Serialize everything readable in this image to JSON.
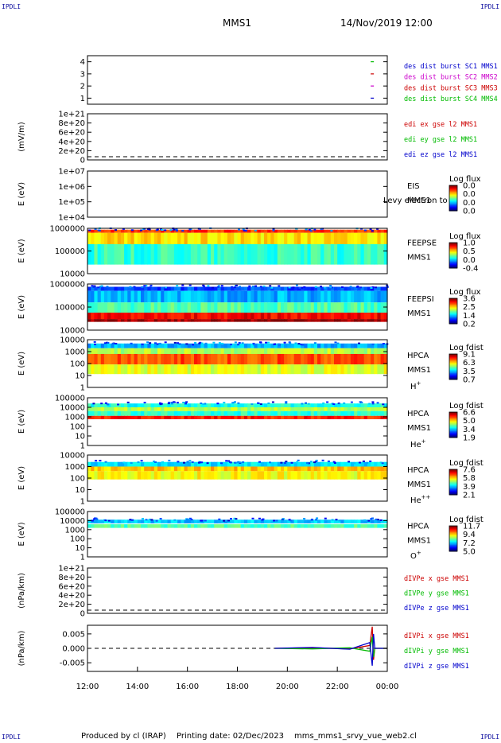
{
  "corner_marks": {
    "tl": "IPDLI",
    "tr": "IPDLI",
    "bl": "IPDLI",
    "br": "IPDLI"
  },
  "header": {
    "spacecraft": "MMS1",
    "datetime": "14/Nov/2019 12:00"
  },
  "footer": {
    "produced_by": "Produced by cl (IRAP)",
    "printing_date": "Printing date: 02/Dec/2023",
    "script": "mms_mms1_srvy_vue_web2.cl"
  },
  "colors": {
    "blue": "#0000cc",
    "magenta": "#cc00cc",
    "red": "#cc0000",
    "green": "#00bb00"
  },
  "chart_data": [
    {
      "type": "scatter",
      "panel": "burst",
      "yticks": [
        "1",
        "2",
        "3",
        "4"
      ],
      "ylim": [
        0.5,
        4.5
      ],
      "legend": [
        {
          "label": "des dist burst SC1 MMS1",
          "color": "#0000cc"
        },
        {
          "label": "des dist burst SC2 MMS2",
          "color": "#cc00cc"
        },
        {
          "label": "des dist burst SC3 MMS3",
          "color": "#cc0000"
        },
        {
          "label": "des dist burst SC4 MMS4",
          "color": "#00bb00"
        }
      ],
      "series": [
        {
          "name": "des dist burst SC1 MMS1",
          "x": [
            23.4
          ],
          "y": [
            1
          ]
        },
        {
          "name": "des dist burst SC2 MMS2",
          "x": [
            23.4
          ],
          "y": [
            2
          ]
        },
        {
          "name": "des dist burst SC3 MMS3",
          "x": [
            23.4
          ],
          "y": [
            3
          ]
        },
        {
          "name": "des dist burst SC4 MMS4",
          "x": [
            23.4
          ],
          "y": [
            4
          ]
        }
      ]
    },
    {
      "type": "line",
      "panel": "edi",
      "ylabel": "(mV/m)",
      "yticks": [
        "1e+21",
        "8e+20",
        "6e+20",
        "4e+20",
        "2e+20",
        "0"
      ],
      "legend": [
        {
          "label": "edi ex gse l2 MMS1",
          "color": "#cc0000"
        },
        {
          "label": "edi ey gse l2 MMS1",
          "color": "#00bb00"
        },
        {
          "label": "edi ez gse l2 MMS1",
          "color": "#0000cc"
        }
      ],
      "zero_line": true
    },
    {
      "type": "heatmap",
      "panel": "eis",
      "ylabel": "E (eV)",
      "yticks": [
        "1e+07",
        "1e+06",
        "1e+05",
        "1e+04"
      ],
      "labels": [
        "EIS",
        "MMS1"
      ],
      "overlay_text": "Levy electron to",
      "colorbar": {
        "title": "Log flux",
        "ticks": [
          "0.0",
          "0.0",
          "0.0",
          "0.0"
        ]
      }
    },
    {
      "type": "heatmap",
      "panel": "feepse",
      "ylabel": "E (eV)",
      "yticks": [
        "1000000",
        "100000",
        "10000"
      ],
      "labels": [
        "FEEPSE",
        "MMS1"
      ],
      "colorbar": {
        "title": "Log flux",
        "ticks": [
          "1.0",
          "0.5",
          "0.0",
          "-0.4"
        ]
      }
    },
    {
      "type": "heatmap",
      "panel": "feepsi",
      "ylabel": "E (eV)",
      "yticks": [
        "1000000",
        "100000",
        "10000"
      ],
      "labels": [
        "FEEPSI",
        "MMS1"
      ],
      "colorbar": {
        "title": "Log flux",
        "ticks": [
          "3.6",
          "2.5",
          "1.4",
          "0.2"
        ]
      }
    },
    {
      "type": "heatmap",
      "panel": "hpca_h",
      "ylabel": "E (eV)",
      "yticks": [
        "10000",
        "1000",
        "100",
        "10",
        "1"
      ],
      "labels": [
        "HPCA",
        "MMS1"
      ],
      "species": "H",
      "charge": "+",
      "colorbar": {
        "title": "Log fdist",
        "ticks": [
          "9.1",
          "6.3",
          "3.5",
          "0.7"
        ]
      }
    },
    {
      "type": "heatmap",
      "panel": "hpca_he",
      "ylabel": "E (eV)",
      "yticks": [
        "100000",
        "10000",
        "1000",
        "100",
        "10",
        "1"
      ],
      "labels": [
        "HPCA",
        "MMS1"
      ],
      "species": "He",
      "charge": "+",
      "colorbar": {
        "title": "Log fdist",
        "ticks": [
          "6.6",
          "5.0",
          "3.4",
          "1.9"
        ]
      }
    },
    {
      "type": "heatmap",
      "panel": "hpca_hepp",
      "ylabel": "E (eV)",
      "yticks": [
        "10000",
        "1000",
        "100",
        "10",
        "1"
      ],
      "labels": [
        "HPCA",
        "MMS1"
      ],
      "species": "He",
      "charge": "++",
      "colorbar": {
        "title": "Log fdist",
        "ticks": [
          "7.6",
          "5.8",
          "3.9",
          "2.1"
        ]
      }
    },
    {
      "type": "heatmap",
      "panel": "hpca_o",
      "ylabel": "E (eV)",
      "yticks": [
        "100000",
        "10000",
        "1000",
        "100",
        "10",
        "1"
      ],
      "labels": [
        "HPCA",
        "MMS1"
      ],
      "species": "O",
      "charge": "+",
      "colorbar": {
        "title": "Log fdist",
        "ticks": [
          "11.7",
          "9.4",
          "7.2",
          "5.0"
        ]
      }
    },
    {
      "type": "line",
      "panel": "divpe",
      "ylabel": "(nPa/km)",
      "yticks": [
        "1e+21",
        "8e+20",
        "6e+20",
        "4e+20",
        "2e+20",
        "0"
      ],
      "legend": [
        {
          "label": "dIVPe x gse MMS1",
          "color": "#cc0000"
        },
        {
          "label": "dIVPe y gse MMS1",
          "color": "#00bb00"
        },
        {
          "label": "dIVPe z gse MMS1",
          "color": "#0000cc"
        }
      ],
      "zero_line": true
    },
    {
      "type": "line",
      "panel": "divpi",
      "ylabel": "(nPa/km)",
      "yticks": [
        "0.005",
        "0.000",
        "-0.005"
      ],
      "ylim": [
        -0.008,
        0.008
      ],
      "legend": [
        {
          "label": "dIVPi x gse MMS1",
          "color": "#cc0000"
        },
        {
          "label": "dIVPi y gse MMS1",
          "color": "#00bb00"
        },
        {
          "label": "dIVPi z gse MMS1",
          "color": "#0000cc"
        }
      ],
      "series": [
        {
          "name": "dIVPi x gse MMS1",
          "x": [
            19.5,
            21,
            22.5,
            23.3,
            23.4,
            23.45,
            23.5,
            24
          ],
          "y": [
            0,
            0.0002,
            -0.0002,
            0.001,
            0.0075,
            -0.004,
            0,
            0
          ]
        },
        {
          "name": "dIVPi y gse MMS1",
          "x": [
            19.5,
            21,
            22.5,
            23.3,
            23.4,
            23.45,
            23.5,
            24
          ],
          "y": [
            0,
            -0.0002,
            0.0002,
            -0.001,
            0.004,
            -0.003,
            0,
            0
          ]
        },
        {
          "name": "dIVPi z gse MMS1",
          "x": [
            19.5,
            21,
            22.5,
            23.3,
            23.4,
            23.45,
            23.5,
            24
          ],
          "y": [
            0,
            0.0003,
            -0.0003,
            0.002,
            -0.006,
            0.005,
            0,
            0
          ]
        }
      ],
      "zero_line": true
    }
  ],
  "time_axis": {
    "range": [
      12,
      24
    ],
    "ticks": [
      12,
      14,
      16,
      18,
      20,
      22,
      24
    ],
    "tick_labels": [
      "12:00",
      "14:00",
      "16:00",
      "18:00",
      "20:00",
      "22:00",
      "00:00"
    ]
  }
}
